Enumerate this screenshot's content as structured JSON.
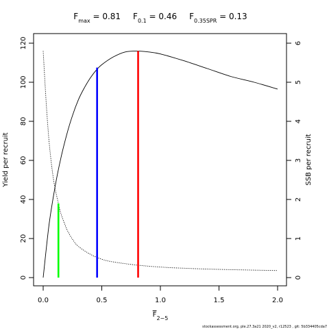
{
  "chart_data": {
    "type": "line",
    "title_parts": [
      {
        "base": "F",
        "sub": "max",
        "value": " = 0.81"
      },
      {
        "base": "F",
        "sub": "0.1",
        "value": " = 0.46"
      },
      {
        "base": "F",
        "sub": "0.35SPR",
        "value": " = 0.13"
      }
    ],
    "xlabel": {
      "base": "F",
      "sub": "2−5"
    },
    "ylabel_left": "Yield per recruit",
    "ylabel_right": "SSB per recruit",
    "xlim": [
      0,
      2
    ],
    "ylim_left": [
      0,
      120
    ],
    "ylim_right": [
      0,
      6
    ],
    "x_ticks": [
      "0.0",
      "0.5",
      "1.0",
      "1.5",
      "2.0"
    ],
    "y_ticks_left": [
      "0",
      "20",
      "40",
      "60",
      "80",
      "100",
      "120"
    ],
    "y_ticks_right": [
      "0",
      "1",
      "2",
      "3",
      "4",
      "5",
      "6"
    ],
    "series": [
      {
        "axis": "left",
        "style": "solid",
        "color": "#000000",
        "x": [
          0,
          0.05,
          0.1,
          0.15,
          0.2,
          0.25,
          0.3,
          0.35,
          0.4,
          0.45,
          0.5,
          0.6,
          0.7,
          0.8,
          0.9,
          1.0,
          1.2,
          1.4,
          1.6,
          1.8,
          2.0
        ],
        "y": [
          0,
          27,
          46,
          61,
          73,
          83,
          91,
          97,
          102,
          106,
          109,
          113,
          115.5,
          116,
          115.5,
          114.5,
          111,
          107,
          103,
          100,
          96.5
        ]
      },
      {
        "axis": "right",
        "style": "dotted",
        "color": "#000000",
        "x": [
          0,
          0.025,
          0.05,
          0.075,
          0.1,
          0.13,
          0.15,
          0.2,
          0.25,
          0.3,
          0.4,
          0.5,
          0.6,
          0.8,
          1.0,
          1.2,
          1.5,
          2.0
        ],
        "y": [
          5.8,
          4.5,
          3.5,
          2.8,
          2.3,
          1.9,
          1.65,
          1.25,
          0.98,
          0.8,
          0.6,
          0.47,
          0.4,
          0.32,
          0.27,
          0.24,
          0.21,
          0.18
        ]
      }
    ],
    "reference_lines": [
      {
        "label": "F0.35SPR",
        "x": 0.13,
        "y": 38,
        "color": "#00ff00"
      },
      {
        "label": "F0.1",
        "x": 0.46,
        "y": 107.5,
        "color": "#0000ff"
      },
      {
        "label": "Fmax",
        "x": 0.81,
        "y": 116,
        "color": "#ff0000"
      }
    ],
    "footer": "stockassessment.org,  ple.27.3a21  2020_v2,  r12523 ,  git: 5b334405cda7"
  }
}
